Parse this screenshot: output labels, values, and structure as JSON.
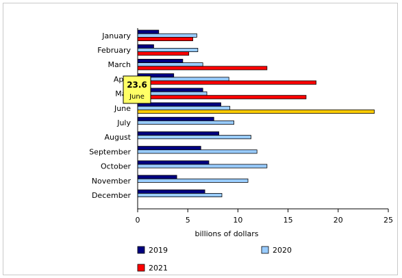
{
  "chart_data": {
    "type": "bar",
    "orientation": "horizontal",
    "categories": [
      "January",
      "February",
      "March",
      "April",
      "May",
      "June",
      "July",
      "August",
      "September",
      "October",
      "November",
      "December"
    ],
    "series": [
      {
        "name": "2019",
        "color": "#000080",
        "values": [
          2.1,
          1.6,
          4.5,
          3.6,
          6.5,
          8.3,
          7.6,
          8.1,
          6.3,
          7.1,
          3.9,
          6.7
        ]
      },
      {
        "name": "2020",
        "color": "#99ccff",
        "values": [
          5.9,
          6.0,
          6.5,
          9.1,
          6.9,
          9.2,
          9.6,
          11.3,
          11.9,
          12.9,
          11.0,
          8.4
        ]
      },
      {
        "name": "2021",
        "color": "#ff0000",
        "values": [
          5.5,
          5.1,
          12.9,
          17.8,
          16.8,
          23.6,
          null,
          null,
          null,
          null,
          null,
          null
        ]
      }
    ],
    "highlight": {
      "category": "June",
      "series": "2021",
      "color": "#ffcc00"
    },
    "tooltip": {
      "value": "23.6",
      "category": "June",
      "color": "#ffff66"
    },
    "xlabel": "billions of dollars",
    "xlim": [
      0,
      25
    ],
    "xticks": [
      0,
      5,
      10,
      15,
      20,
      25
    ],
    "grid": false,
    "legend_position": "bottom"
  }
}
